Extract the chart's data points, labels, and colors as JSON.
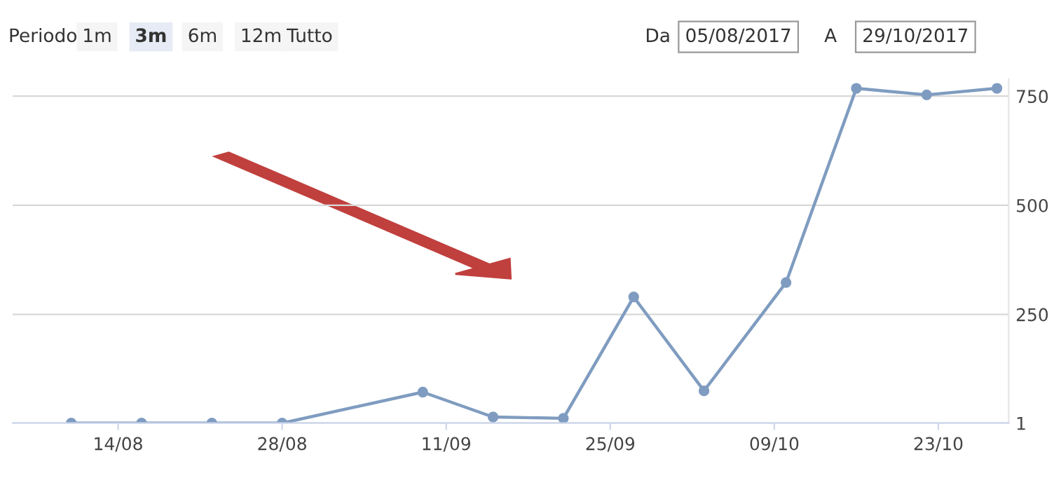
{
  "chart_data": {
    "type": "line",
    "x": [
      "2017-08-10",
      "2017-08-16",
      "2017-08-22",
      "2017-08-28",
      "2017-09-09",
      "2017-09-15",
      "2017-09-21",
      "2017-09-27",
      "2017-10-03",
      "2017-10-10",
      "2017-10-16",
      "2017-10-22",
      "2017-10-28"
    ],
    "series": [
      {
        "color": "#7f9cc0",
        "values": [
          1,
          1,
          1,
          1,
          72,
          15,
          12,
          290,
          75,
          323,
          768,
          753,
          768
        ]
      }
    ],
    "xlim": [
      "2017-08-05",
      "2017-10-29"
    ],
    "ylim": [
      1,
      790
    ],
    "xticks": [
      {
        "value": "2017-08-14",
        "label": "14/08"
      },
      {
        "value": "2017-08-28",
        "label": "28/08"
      },
      {
        "value": "2017-09-11",
        "label": "11/09"
      },
      {
        "value": "2017-09-25",
        "label": "25/09"
      },
      {
        "value": "2017-10-09",
        "label": "09/10"
      },
      {
        "value": "2017-10-23",
        "label": "23/10"
      }
    ],
    "yticks": [
      1,
      250,
      500,
      750
    ],
    "grid": "y",
    "marker": "circle",
    "line_style": "solid",
    "annotations": [
      "Periodo",
      "1m",
      "3m",
      "6m",
      "12m",
      "Tutto",
      "Da",
      "05/08/2017",
      "A",
      "29/10/2017"
    ]
  }
}
